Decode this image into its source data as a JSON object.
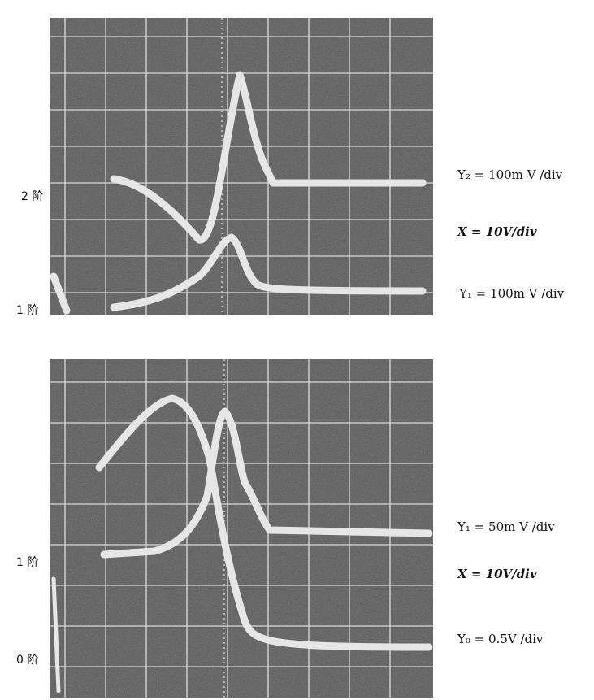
{
  "panels": [
    {
      "left_labels": [
        "2 阶",
        "1 阶"
      ],
      "right_labels": [
        "Y₂ = 100m V /div",
        "X = 10V/div",
        "Y₁ = 100m V /div"
      ]
    },
    {
      "left_labels": [
        "1 阶",
        "0 阶"
      ],
      "right_labels": [
        "Y₁ = 50m V /div",
        "X = 10V/div",
        "Y₀ = 0.5V /div"
      ]
    }
  ]
}
